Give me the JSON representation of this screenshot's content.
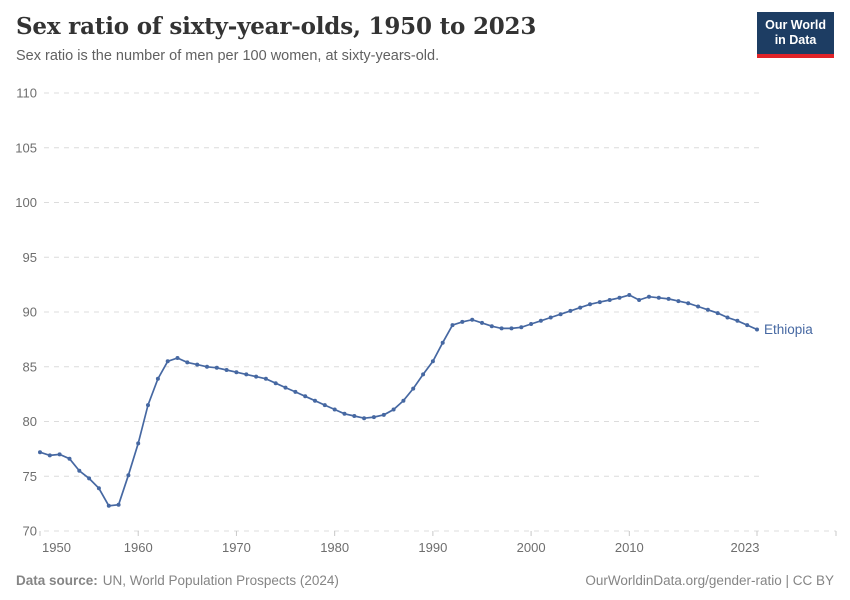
{
  "header": {
    "title": "Sex ratio of sixty-year-olds, 1950 to 2023",
    "subtitle": "Sex ratio is the number of men per 100 women, at sixty-years-old."
  },
  "logo": {
    "line1": "Our World",
    "line2": "in Data"
  },
  "footer": {
    "source_label": "Data source:",
    "source_text": "UN, World Population Prospects (2024)",
    "right_text": "OurWorldinData.org/gender-ratio | CC BY"
  },
  "colors": {
    "line": "#4668a2",
    "grid": "#dcdcdc",
    "axis_text": "#6e6e6e",
    "tick_mark": "#c8c8c8",
    "title": "#333333",
    "logo_bg": "#1d3d63",
    "logo_red": "#e02328"
  },
  "chart_data": {
    "type": "line",
    "title": "Sex ratio of sixty-year-olds, 1950 to 2023",
    "ylabel": "men per 100 women",
    "xlim": [
      1950,
      2023
    ],
    "ylim": [
      70,
      110
    ],
    "y_ticks": [
      70,
      75,
      80,
      85,
      90,
      95,
      100,
      105,
      110
    ],
    "x_ticks": [
      1950,
      1960,
      1970,
      1980,
      1990,
      2000,
      2010,
      2023
    ],
    "grid": "horizontal-dashed",
    "legend_position": "end-of-line-label",
    "series": [
      {
        "name": "Ethiopia",
        "x_start": 1950,
        "x_step": 1,
        "values": [
          77.2,
          76.9,
          77.0,
          76.6,
          75.5,
          74.8,
          73.9,
          72.3,
          72.4,
          75.1,
          78.0,
          81.5,
          83.9,
          85.5,
          85.8,
          85.4,
          85.2,
          85.0,
          84.9,
          84.7,
          84.5,
          84.3,
          84.1,
          83.9,
          83.5,
          83.1,
          82.7,
          82.3,
          81.9,
          81.5,
          81.1,
          80.7,
          80.5,
          80.3,
          80.4,
          80.6,
          81.1,
          81.9,
          83.0,
          84.3,
          85.5,
          87.2,
          88.8,
          89.1,
          89.3,
          89.0,
          88.7,
          88.5,
          88.5,
          88.6,
          88.9,
          89.2,
          89.5,
          89.8,
          90.1,
          90.4,
          90.7,
          90.9,
          91.1,
          91.3,
          91.55,
          91.1,
          91.4,
          91.3,
          91.2,
          91.0,
          90.8,
          90.5,
          90.2,
          89.9,
          89.5,
          89.2,
          88.8,
          88.4
        ]
      }
    ]
  }
}
